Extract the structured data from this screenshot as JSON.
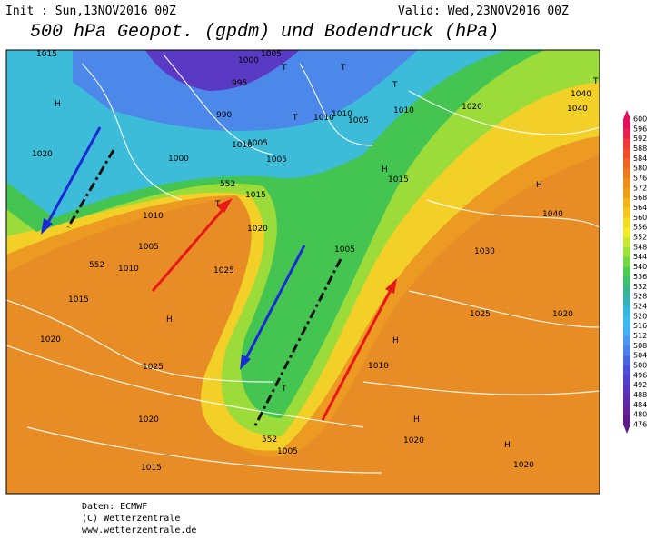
{
  "header": {
    "init": "Init : Sun,13NOV2016 00Z",
    "valid": "Valid: Wed,23NOV2016 00Z",
    "title": "500 hPa Geopot. (gpdm) und Bodendruck (hPa)"
  },
  "colorbar": {
    "levels": [
      600,
      596,
      592,
      588,
      584,
      580,
      576,
      572,
      568,
      564,
      560,
      556,
      552,
      548,
      544,
      540,
      536,
      532,
      528,
      524,
      520,
      516,
      512,
      508,
      504,
      500,
      496,
      492,
      488,
      484,
      480,
      476
    ],
    "colors": [
      "#e0105a",
      "#e8204c",
      "#ee3a3a",
      "#f04e2a",
      "#ee6422",
      "#ec7a1e",
      "#ea8e1c",
      "#eca01a",
      "#eeb41a",
      "#f2c81c",
      "#f4dc20",
      "#f0ec28",
      "#c8e834",
      "#9ee23a",
      "#74d844",
      "#4ccc50",
      "#3cc070",
      "#36b494",
      "#34b2b8",
      "#36b8d8",
      "#3cbcee",
      "#44b0f4",
      "#4c98f0",
      "#4c80ea",
      "#4c66e2",
      "#4c50d8",
      "#5040cc",
      "#5834bc",
      "#5e2aac",
      "#62229a",
      "#601c86"
    ]
  },
  "map_labels": [
    "1015",
    "1005",
    "1000",
    "995",
    "990",
    "T",
    "T",
    "T",
    "1010",
    "1010",
    "1005",
    "1010",
    "1020",
    "1040",
    "1040",
    "T",
    "H",
    "1020",
    "1000",
    "1010",
    "1005",
    "1005",
    "T",
    "H",
    "1015",
    "H",
    "1015",
    "T",
    "1040",
    "1010",
    "1020",
    "1005",
    "1010",
    "1025",
    "1005",
    "1030",
    "1015",
    "H",
    "1025",
    "1020",
    "1020",
    "H",
    "1025",
    "1010",
    "T",
    "1020",
    "H",
    "1020",
    "H",
    "1005",
    "1015",
    "1020",
    "552",
    "552",
    "552"
  ],
  "footer": [
    "Daten: ECMWF",
    "(C) Wetterzentrale",
    "www.wetterzentrale.de"
  ]
}
